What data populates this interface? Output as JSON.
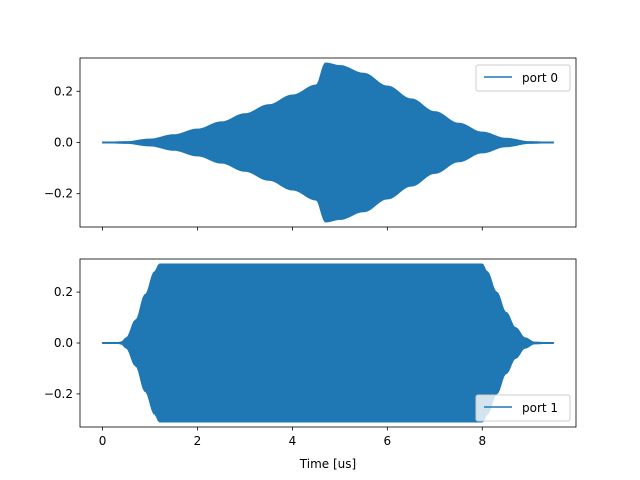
{
  "figure": {
    "background": "#ffffff"
  },
  "chart_data": [
    {
      "type": "area",
      "subplot": 0,
      "envelope": "hann",
      "x_range": [
        0,
        9.5
      ],
      "xlim": [
        -0.475,
        9.975
      ],
      "ylim": [
        -0.33,
        0.33
      ],
      "xticks": [
        0,
        2,
        4,
        6,
        8
      ],
      "xtick_labels_shown": false,
      "yticks": [
        -0.2,
        0.0,
        0.2
      ],
      "ytick_labels": [
        "−0.2",
        "0.0",
        "0.2"
      ],
      "xlabel": "",
      "ylabel": "",
      "legend_position": "upper right",
      "series": [
        {
          "name": "port 0",
          "color": "#1f77b4",
          "peak_amplitude": 0.31,
          "peak_x": 4.7,
          "envelope_x": [
            0,
            0.5,
            1,
            1.5,
            2,
            2.5,
            3,
            3.5,
            4,
            4.5,
            4.7,
            5,
            5.5,
            6,
            6.5,
            7,
            7.5,
            8,
            8.5,
            9,
            9.5
          ],
          "envelope_y": [
            0,
            0.003,
            0.013,
            0.03,
            0.052,
            0.08,
            0.112,
            0.147,
            0.185,
            0.224,
            0.31,
            0.3,
            0.27,
            0.22,
            0.17,
            0.12,
            0.075,
            0.04,
            0.016,
            0.003,
            0
          ]
        }
      ]
    },
    {
      "type": "area",
      "subplot": 1,
      "envelope": "tukey",
      "x_range": [
        0,
        9.5
      ],
      "xlim": [
        -0.475,
        9.975
      ],
      "ylim": [
        -0.33,
        0.33
      ],
      "xticks": [
        0,
        2,
        4,
        6,
        8
      ],
      "xtick_labels": [
        "0",
        "2",
        "4",
        "6",
        "8"
      ],
      "yticks": [
        -0.2,
        0.0,
        0.2
      ],
      "ytick_labels": [
        "−0.2",
        "0.0",
        "0.2"
      ],
      "xlabel": "Time [us]",
      "ylabel": "",
      "legend_position": "lower right",
      "series": [
        {
          "name": "port 1",
          "color": "#1f77b4",
          "peak_amplitude": 0.31,
          "envelope_x": [
            0,
            0.3,
            0.4,
            0.5,
            0.7,
            0.9,
            1.1,
            1.2,
            8.0,
            8.1,
            8.3,
            8.5,
            8.7,
            8.9,
            9.1,
            9.5
          ],
          "envelope_y": [
            0,
            0,
            0.004,
            0.02,
            0.09,
            0.19,
            0.28,
            0.31,
            0.31,
            0.28,
            0.2,
            0.12,
            0.06,
            0.02,
            0.003,
            0
          ]
        }
      ]
    }
  ]
}
